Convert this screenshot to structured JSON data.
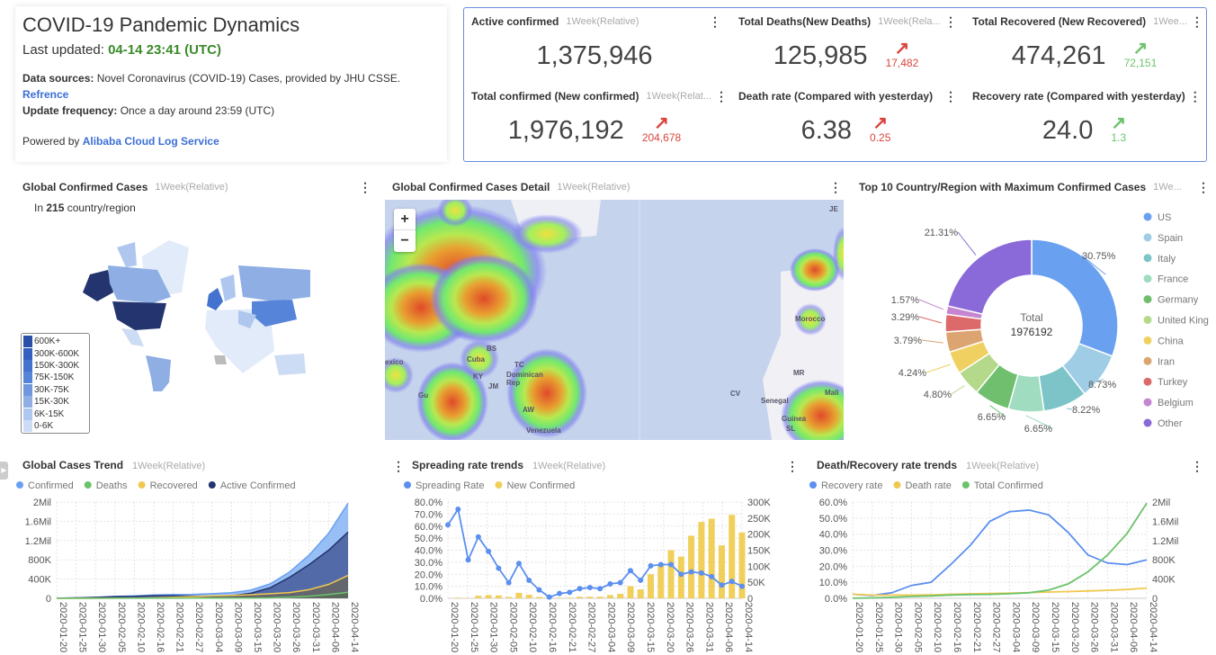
{
  "header": {
    "title": "COVID-19 Pandemic Dynamics",
    "last_updated_label": "Last updated:",
    "last_updated": "04-14 23:41 (UTC)",
    "sources_label": "Data sources:",
    "sources": "Novel Coronavirus (COVID-19) Cases, provided by JHU CSSE.",
    "reference": "Refrence",
    "freq_label": "Update frequency:",
    "freq": "Once a day around 23:59 (UTC)",
    "powered_label": "Powered by",
    "powered": "Alibaba Cloud Log Service"
  },
  "kpis": [
    {
      "title": "Active confirmed",
      "range": "1Week(Relative)",
      "value": "1,375,946",
      "delta": "",
      "trend": ""
    },
    {
      "title": "Total Deaths(New Deaths)",
      "range": "1Week(Rela...",
      "value": "125,985",
      "delta": "17,482",
      "trend": "up-red"
    },
    {
      "title": "Total Recovered (New Recovered)",
      "range": "1Wee...",
      "value": "474,261",
      "delta": "72,151",
      "trend": "up-green"
    },
    {
      "title": "Total confirmed (New confirmed)",
      "range": "1Week(Relat...",
      "value": "1,976,192",
      "delta": "204,678",
      "trend": "up-red"
    },
    {
      "title": "Death rate (Compared with yesterday)",
      "range": "",
      "value": "6.38",
      "delta": "0.25",
      "trend": "up-red"
    },
    {
      "title": "Recovery rate (Compared with yesterday)",
      "range": "",
      "value": "24.0",
      "delta": "1.3",
      "trend": "up-green"
    }
  ],
  "arrow": "↗",
  "menu_glyph": "⋮",
  "global_map": {
    "title": "Global Confirmed Cases",
    "range": "1Week(Relative)",
    "prefix": "In",
    "count": "215",
    "suffix": "country/region",
    "legend": [
      {
        "label": "600K+",
        "color": "#2a4fa8"
      },
      {
        "label": "300K-600K",
        "color": "#3560bf"
      },
      {
        "label": "150K-300K",
        "color": "#4472cf"
      },
      {
        "label": "75K-150K",
        "color": "#5684d8"
      },
      {
        "label": "30K-75K",
        "color": "#7097dd"
      },
      {
        "label": "15K-30K",
        "color": "#8eaee4"
      },
      {
        "label": "6K-15K",
        "color": "#afc7ee"
      },
      {
        "label": "0-6K",
        "color": "#cddcf5"
      }
    ]
  },
  "detail_map": {
    "title": "Global Confirmed Cases Detail",
    "range": "1Week(Relative)",
    "zoom_in": "+",
    "zoom_out": "−",
    "labels": [
      "exico",
      "BS",
      "Cuba",
      "KY",
      "JM",
      "TC",
      "Dominican Rep",
      "AW",
      "Venezuela",
      "Gu",
      "CV",
      "MR",
      "Morocco",
      "Senegal",
      "Guinea",
      "SL",
      "Mali",
      "JE"
    ]
  },
  "top10": {
    "title": "Top 10 Country/Region with Maximum Confirmed Cases",
    "range": "1We...",
    "center_label": "Total",
    "center_value": "1976192"
  },
  "chart_data": [
    {
      "type": "pie",
      "variant": "donut",
      "categories": [
        "US",
        "Spain",
        "Italy",
        "France",
        "Germany",
        "United Kingdom",
        "China",
        "Iran",
        "Turkey",
        "Belgium",
        "Other"
      ],
      "legend_labels": [
        "US",
        "Spain",
        "Italy",
        "France",
        "Germany",
        "United King",
        "China",
        "Iran",
        "Turkey",
        "Belgium",
        "Other"
      ],
      "values": [
        30.75,
        8.73,
        8.22,
        6.65,
        6.65,
        4.8,
        4.24,
        3.79,
        3.29,
        1.57,
        21.31
      ],
      "labels": [
        "30.75%",
        "8.73%",
        "8.22%",
        "6.65%",
        "6.65%",
        "4.80%",
        "4.24%",
        "3.79%",
        "3.29%",
        "1.57%",
        "21.31%"
      ],
      "colors": [
        "#6aa0f0",
        "#9fcde6",
        "#7cc4c8",
        "#9fdcc0",
        "#6fbf6f",
        "#b5d98a",
        "#f0d060",
        "#dca470",
        "#dc6a6a",
        "#c585d0",
        "#8a6ad8"
      ],
      "legend": "right"
    },
    {
      "type": "area",
      "title": "Global Cases Trend",
      "range": "1Week(Relative)",
      "x": [
        "2020-01-20",
        "2020-01-25",
        "2020-01-30",
        "2020-02-05",
        "2020-02-10",
        "2020-02-16",
        "2020-02-21",
        "2020-02-27",
        "2020-03-04",
        "2020-03-09",
        "2020-03-15",
        "2020-03-20",
        "2020-03-26",
        "2020-03-31",
        "2020-04-06",
        "2020-04-14"
      ],
      "yticks": [
        "0",
        "400K",
        "800K",
        "1.2Mil",
        "1.6Mil",
        "2Mil"
      ],
      "ylim": [
        0,
        2000000
      ],
      "series": [
        {
          "name": "Confirmed",
          "color": "#6aa0f0",
          "values": [
            1000,
            10000,
            20000,
            40000,
            50000,
            70000,
            78000,
            82000,
            95000,
            115000,
            170000,
            300000,
            550000,
            900000,
            1350000,
            1976192
          ]
        },
        {
          "name": "Deaths",
          "color": "#6cc36c",
          "values": [
            0,
            200,
            500,
            1000,
            1500,
            2000,
            2500,
            3000,
            3500,
            4000,
            6000,
            10000,
            25000,
            45000,
            80000,
            125985
          ]
        },
        {
          "name": "Recovered",
          "color": "#f0c850",
          "values": [
            0,
            200,
            1000,
            2000,
            5000,
            10000,
            20000,
            35000,
            50000,
            60000,
            75000,
            95000,
            120000,
            180000,
            290000,
            474261
          ]
        },
        {
          "name": "Active Confirmed",
          "color": "#24346e",
          "values": [
            1000,
            9000,
            18000,
            36000,
            40000,
            55000,
            52000,
            45000,
            42000,
            55000,
            105000,
            220000,
            440000,
            700000,
            1000000,
            1375946
          ]
        }
      ],
      "legend": "top",
      "grid": true
    },
    {
      "type": "bar+line",
      "title": "Spreading rate trends",
      "range": "1Week(Relative)",
      "xticks": [
        "2020-01-20",
        "2020-01-25",
        "2020-01-30",
        "2020-02-05",
        "2020-02-10",
        "2020-02-16",
        "2020-02-21",
        "2020-02-27",
        "2020-03-04",
        "2020-03-09",
        "2020-03-15",
        "2020-03-20",
        "2020-03-26",
        "2020-03-31",
        "2020-04-06",
        "2020-04-14"
      ],
      "y_left_ticks": [
        "0.0%",
        "10.0%",
        "20.0%",
        "30.0%",
        "40.0%",
        "50.0%",
        "60.0%",
        "70.0%",
        "80.0%"
      ],
      "y_left_lim": [
        0,
        80
      ],
      "y_right_ticks": [
        "0",
        "50K",
        "100K",
        "150K",
        "200K",
        "250K",
        "300K"
      ],
      "y_right_lim": [
        0,
        300000
      ],
      "series": [
        {
          "name": "Spreading Rate",
          "type": "line",
          "axis": "left",
          "color": "#5b8ff0",
          "values": [
            61,
            74,
            32,
            51,
            39,
            25,
            13,
            29,
            15,
            7,
            1,
            4,
            5,
            8,
            9,
            8,
            12,
            13,
            23,
            15,
            27,
            28,
            28,
            20,
            22,
            21,
            18,
            11,
            14,
            10
          ]
        },
        {
          "name": "New Confirmed",
          "type": "bar",
          "axis": "right",
          "color": "#f0cf5a",
          "values": [
            0,
            2000,
            1000,
            8000,
            10000,
            9000,
            4000,
            17000,
            11000,
            4000,
            500,
            2000,
            2000,
            5000,
            5000,
            5000,
            10000,
            14000,
            38000,
            28000,
            75000,
            105000,
            150000,
            130000,
            195000,
            238000,
            248000,
            165000,
            260000,
            205000
          ]
        }
      ],
      "legend": "top",
      "grid": true
    },
    {
      "type": "line",
      "title": "Death/Recovery rate trends",
      "range": "1Week(Relative)",
      "x": [
        "2020-01-20",
        "2020-01-25",
        "2020-01-30",
        "2020-02-05",
        "2020-02-10",
        "2020-02-16",
        "2020-02-21",
        "2020-02-27",
        "2020-03-04",
        "2020-03-09",
        "2020-03-15",
        "2020-03-20",
        "2020-03-26",
        "2020-03-31",
        "2020-04-06",
        "2020-04-14"
      ],
      "y_left_ticks": [
        "0.0%",
        "10.0%",
        "20.0%",
        "30.0%",
        "40.0%",
        "50.0%",
        "60.0%"
      ],
      "y_left_lim": [
        0,
        60
      ],
      "y_right_ticks": [
        "0",
        "400K",
        "800K",
        "1.2Mil",
        "1.6Mil",
        "2Mil"
      ],
      "y_right_lim": [
        0,
        2000000
      ],
      "series": [
        {
          "name": "Recovery rate",
          "axis": "left",
          "color": "#5b8ff0",
          "values": [
            2.5,
            1.8,
            3.5,
            8,
            10,
            21,
            33,
            48,
            54,
            55,
            52,
            41,
            27,
            22,
            21,
            24
          ]
        },
        {
          "name": "Death rate",
          "axis": "left",
          "color": "#f0c850",
          "values": [
            2.5,
            2,
            2,
            2,
            2.2,
            2.5,
            2.8,
            3,
            3.2,
            3.6,
            3.9,
            4.2,
            4.6,
            5.0,
            5.5,
            6.4
          ]
        },
        {
          "name": "Total Confirmed",
          "axis": "right",
          "color": "#6cc36c",
          "values": [
            1000,
            10000,
            20000,
            40000,
            50000,
            70000,
            78000,
            82000,
            95000,
            115000,
            170000,
            300000,
            550000,
            900000,
            1350000,
            1976192
          ]
        }
      ],
      "legend": "top",
      "grid": true
    }
  ]
}
